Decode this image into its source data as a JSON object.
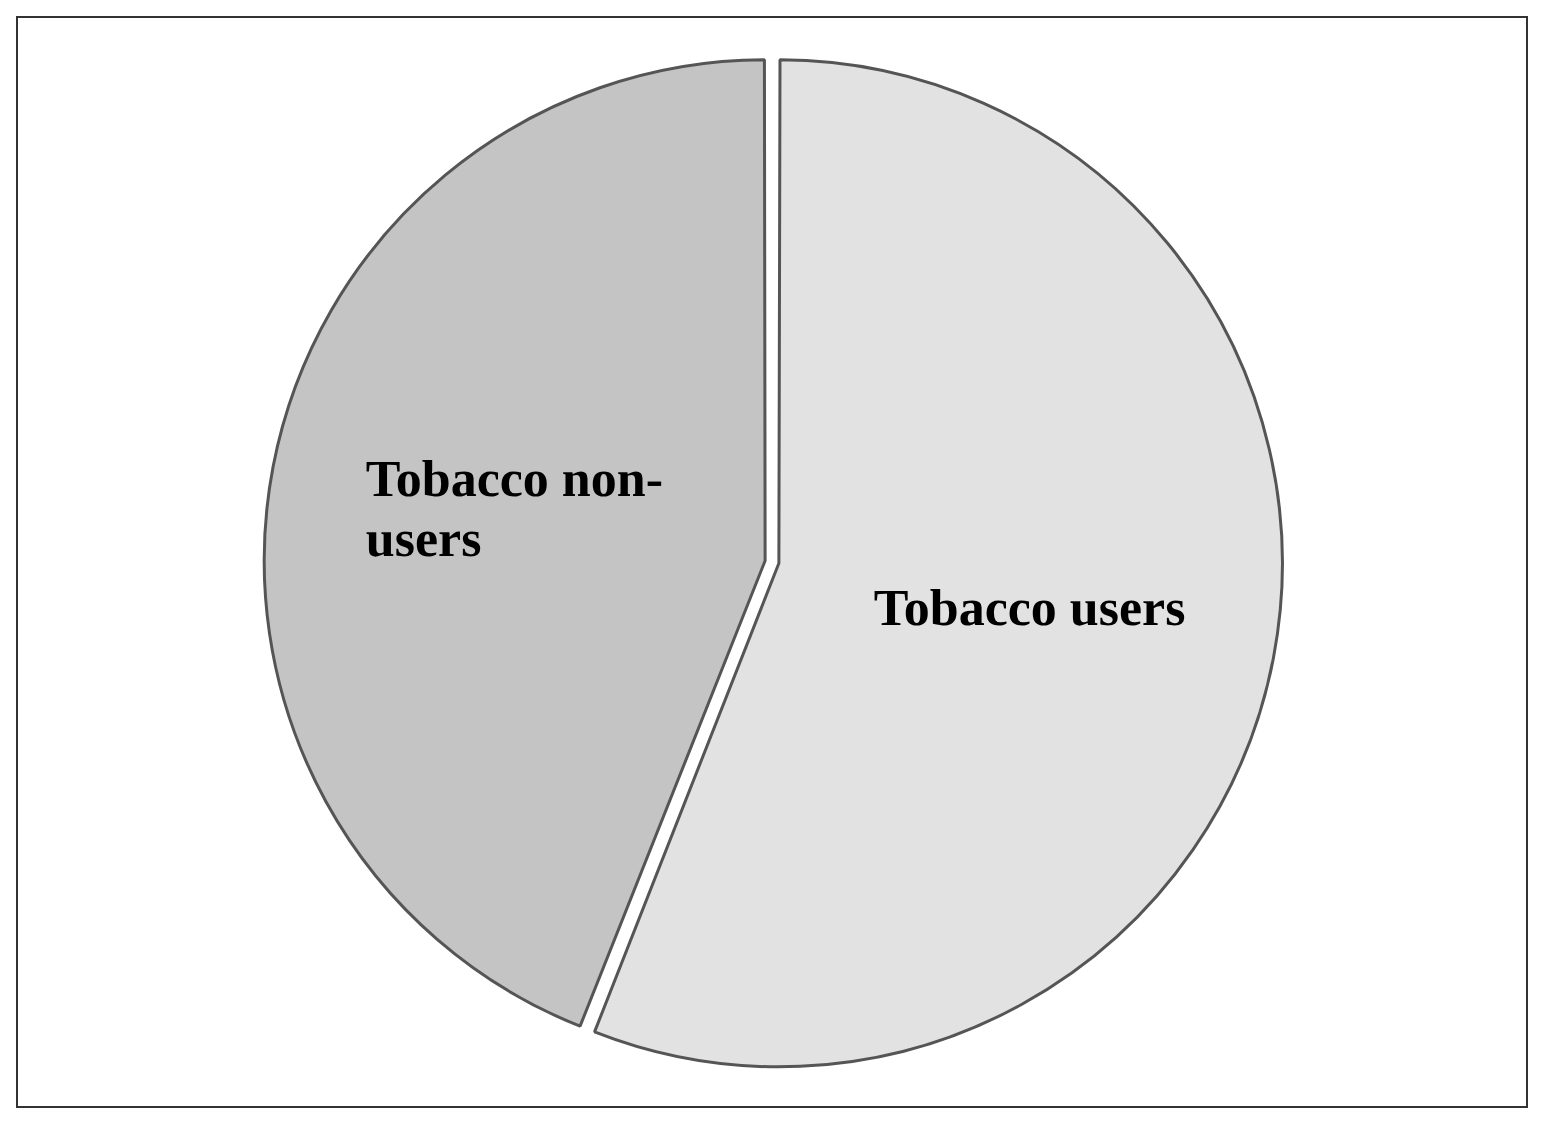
{
  "chart_data": {
    "type": "pie",
    "categories": [
      "Tobacco users",
      "Tobacco non-users"
    ],
    "values": [
      56,
      44
    ],
    "colors": [
      "#e2e2e2",
      "#c4c4c4"
    ],
    "legend": false
  }
}
